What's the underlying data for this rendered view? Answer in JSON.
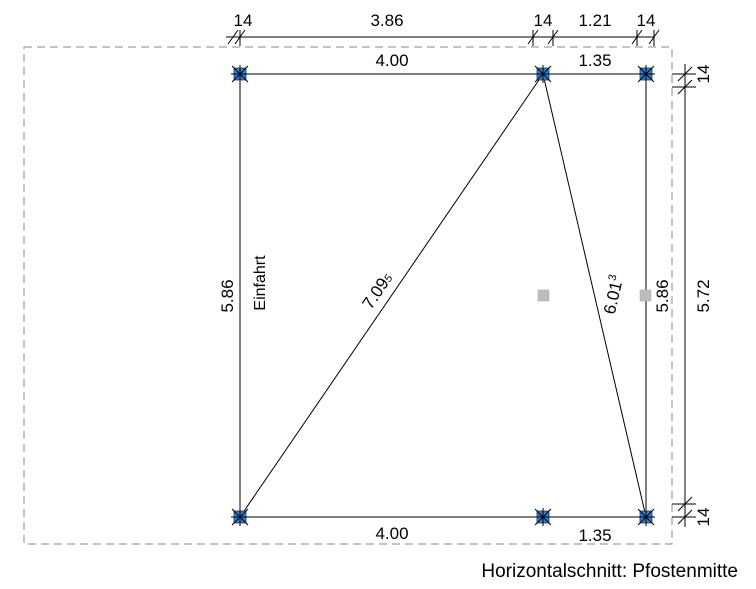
{
  "drawing": {
    "top_dims": {
      "d1": "14",
      "d2": "3.86",
      "d3": "14",
      "d4": "1.21",
      "d5": "14"
    },
    "top_inner_dims": {
      "left": "4.00",
      "right": "1.35"
    },
    "bottom_dims": {
      "left": "4.00",
      "right": "1.35"
    },
    "side_dims": {
      "left": "5.86",
      "right_inner": "5.86",
      "right_outer": "5.72",
      "top_small": "14",
      "bottom_small": "14"
    },
    "diagonals": {
      "d1_main": "7.09",
      "d1_suffix": "5",
      "d2_main": "6.01",
      "d2_suffix": "3"
    },
    "label_einfahrt": "Einfahrt",
    "post_color": "#2f7fd1",
    "marker_color": "#bdbdbd"
  },
  "caption": "Horizontalschnitt: Pfostenmitte"
}
